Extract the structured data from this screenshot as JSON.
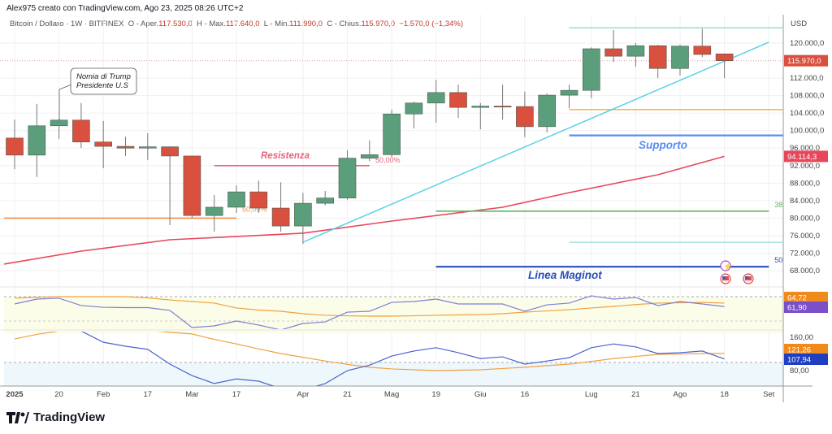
{
  "header": {
    "text": "Alex975 creato con TradingView.com, Ago 23, 2025 08:26 UTC+2"
  },
  "legend": {
    "symbol": "Bitcoin / Dollaro · 1W · BITFINEX",
    "open_label": "O - Aper.",
    "open": "117.530,0",
    "high_label": "H - Max.",
    "high": "117.640,0",
    "low_label": "L - Min.",
    "low": "111.990,0",
    "close_label": "C - Chius.",
    "close": "115.970,0",
    "change": "−1.570,0 (−1,34%)"
  },
  "colors": {
    "up": "#5b9e7c",
    "down": "#d9503e",
    "ma": "#e8475b",
    "trend": "#4fd1e0",
    "rsi": "#7e7fd6",
    "rsi_ma": "#f0a040",
    "cci": "#4a63d0"
  },
  "chart_data": {
    "type": "candlestick",
    "currency": "USD",
    "first_week": "2025-01-06",
    "ylim": [
      64000,
      128000
    ],
    "yticks": [
      "120.000,0",
      "112.000,0",
      "108.000,0",
      "104.000,0",
      "100.000,0",
      "96.000,0",
      "92.000,0",
      "88.000,0",
      "84.000,0",
      "80.000,0",
      "76.000,0",
      "72.000,0",
      "68.000,0"
    ],
    "ytick_values": [
      120000,
      112000,
      108000,
      104000,
      100000,
      96000,
      92000,
      88000,
      84000,
      80000,
      76000,
      72000,
      68000
    ],
    "xticks": [
      {
        "label": "2025",
        "date": "2025-01-06"
      },
      {
        "label": "20",
        "date": "2025-01-20"
      },
      {
        "label": "Feb",
        "date": "2025-02-03"
      },
      {
        "label": "17",
        "date": "2025-02-17"
      },
      {
        "label": "Mar",
        "date": "2025-03-03"
      },
      {
        "label": "17",
        "date": "2025-03-17"
      },
      {
        "label": "Apr",
        "date": "2025-04-07"
      },
      {
        "label": "21",
        "date": "2025-04-21"
      },
      {
        "label": "Mag",
        "date": "2025-05-05"
      },
      {
        "label": "19",
        "date": "2025-05-19"
      },
      {
        "label": "Giu",
        "date": "2025-06-02"
      },
      {
        "label": "16",
        "date": "2025-06-16"
      },
      {
        "label": "Lug",
        "date": "2025-07-07"
      },
      {
        "label": "21",
        "date": "2025-07-21"
      },
      {
        "label": "Ago",
        "date": "2025-08-04"
      },
      {
        "label": "18",
        "date": "2025-08-18"
      },
      {
        "label": "Set",
        "date": "2025-09-01"
      }
    ],
    "ohlc": [
      [
        98300,
        102500,
        91200,
        94400
      ],
      [
        94400,
        106100,
        89400,
        101100
      ],
      [
        101100,
        102700,
        98100,
        102400
      ],
      [
        102400,
        106300,
        96000,
        97400
      ],
      [
        97400,
        102200,
        91400,
        96400
      ],
      [
        96400,
        98600,
        94200,
        96000
      ],
      [
        96000,
        99400,
        93300,
        96300
      ],
      [
        96300,
        96400,
        78400,
        94200
      ],
      [
        94200,
        94300,
        80100,
        80600
      ],
      [
        80600,
        85300,
        76900,
        82500
      ],
      [
        82500,
        87500,
        81200,
        86000
      ],
      [
        86000,
        88600,
        81200,
        82300
      ],
      [
        82300,
        88200,
        76900,
        78200
      ],
      [
        78200,
        85800,
        74100,
        83400
      ],
      [
        83400,
        86200,
        82900,
        84600
      ],
      [
        84600,
        95500,
        84200,
        93700
      ],
      [
        93700,
        97800,
        93000,
        94500
      ],
      [
        94500,
        104800,
        94000,
        103800
      ],
      [
        103800,
        106600,
        100500,
        106300
      ],
      [
        106300,
        111600,
        101800,
        108700
      ],
      [
        108700,
        110500,
        102900,
        105300
      ],
      [
        105300,
        106300,
        100300,
        105600
      ],
      [
        105600,
        110500,
        102500,
        105400
      ],
      [
        105500,
        108900,
        98500,
        100900
      ],
      [
        100900,
        108500,
        99600,
        108100
      ],
      [
        108100,
        110500,
        105100,
        109200
      ],
      [
        109200,
        119000,
        107400,
        118700
      ],
      [
        118700,
        123000,
        115700,
        117000
      ],
      [
        117000,
        120000,
        114600,
        119400
      ],
      [
        119400,
        119600,
        112000,
        114200
      ],
      [
        114200,
        119600,
        112600,
        119300
      ],
      [
        119300,
        123300,
        116800,
        117400
      ],
      [
        117530,
        117640,
        111990,
        115970
      ]
    ],
    "ma": {
      "week_index": [
        0,
        3,
        7,
        13,
        17,
        22,
        25,
        29,
        32
      ],
      "values": [
        69500,
        72460,
        75060,
        76550,
        79330,
        82490,
        85830,
        89920,
        94114.3
      ]
    },
    "last_price_label": "115.970,0",
    "ma_label": "94.114,3",
    "trendline": {
      "from": {
        "date": "2025-04-07",
        "price": 74500
      },
      "to": {
        "date": "2025-09-01",
        "price": 120200
      }
    },
    "levels": [
      {
        "name": "orange-support",
        "price": 80000,
        "from": "2024-12-30",
        "to": "2025-03-17",
        "color": "#f0904a",
        "label": "50,00%"
      },
      {
        "name": "resistance",
        "price": 92000,
        "from": "2025-03-10",
        "to": "2025-04-28",
        "color": "#e8637a",
        "label": "50,00%"
      },
      {
        "name": "top-teal",
        "price": 123500,
        "from": "2025-06-30",
        "to": "2025-09-08",
        "color": "#9fe0d8",
        "label": ""
      },
      {
        "name": "orange",
        "price": 104800,
        "from": "2025-06-30",
        "to": "2025-09-08",
        "color": "#f5b85a",
        "label": ""
      },
      {
        "name": "supporto",
        "price": 98900,
        "from": "2025-06-30",
        "to": "2025-09-08",
        "color": "#5b8ef0",
        "label": ""
      },
      {
        "name": "fib-38",
        "price": 81600,
        "from": "2025-05-19",
        "to": "2025-09-01",
        "color": "#5cb85c",
        "label": "38"
      },
      {
        "name": "thin-teal",
        "price": 74500,
        "from": "2025-06-30",
        "to": "2025-09-08",
        "color": "#a8e6e0",
        "label": ""
      },
      {
        "name": "maginot",
        "price": 68900,
        "from": "2025-05-19",
        "to": "2025-09-01",
        "color": "#2a4db8",
        "label": "50"
      }
    ],
    "annotations": {
      "trump": "Nomia di Trump Presidente U.S",
      "trump_line1": "Nomia di Trump",
      "trump_line2": "Presidente U.S",
      "resistenza": "Resistenza",
      "supporto": "Supporto",
      "maginot": "Linea Maginot"
    },
    "rsi": {
      "values": [
        64,
        68,
        68.7,
        62.7,
        61.3,
        61,
        61,
        58.7,
        44.7,
        46,
        50,
        46.7,
        42.7,
        48,
        49.3,
        57.3,
        58,
        65.3,
        66,
        68,
        64,
        64,
        64,
        58,
        63.3,
        64.7,
        70.7,
        68,
        69.3,
        62.7,
        66,
        64,
        61.9
      ],
      "ma": [
        68.7,
        69.5,
        70,
        70,
        70,
        70,
        69,
        67.3,
        66,
        64.7,
        60.7,
        59,
        58,
        56,
        54.7,
        54.3,
        54,
        54,
        54.3,
        54.7,
        55,
        55.3,
        56,
        57.3,
        58.3,
        59.3,
        60.7,
        62,
        63.5,
        64.7,
        65,
        65.3,
        64.72
      ],
      "ma_label": "64,72",
      "label": "61,90"
    },
    "osc": {
      "values": [
        185,
        195,
        190,
        175,
        148,
        138.5,
        131,
        95.6,
        68,
        49,
        60,
        54.6,
        37,
        33,
        49,
        80,
        93,
        115,
        127,
        135,
        123,
        109,
        113,
        95.6,
        103,
        111,
        135,
        144,
        137,
        121,
        123,
        127,
        107.94
      ],
      "ma": [
        156,
        167,
        175,
        180,
        182,
        180,
        177,
        172,
        168,
        155,
        144,
        132,
        121,
        112,
        103,
        95,
        88,
        84,
        82,
        80,
        81,
        82,
        85,
        88,
        92,
        95.6,
        102,
        109,
        114,
        119,
        120,
        121,
        121.26
      ],
      "ticks": [
        "160,00",
        "80,00"
      ],
      "tick_values": [
        160,
        80
      ],
      "ma_label": "121,26",
      "label": "107,94"
    }
  },
  "footer": {
    "brand": "TradingView"
  }
}
